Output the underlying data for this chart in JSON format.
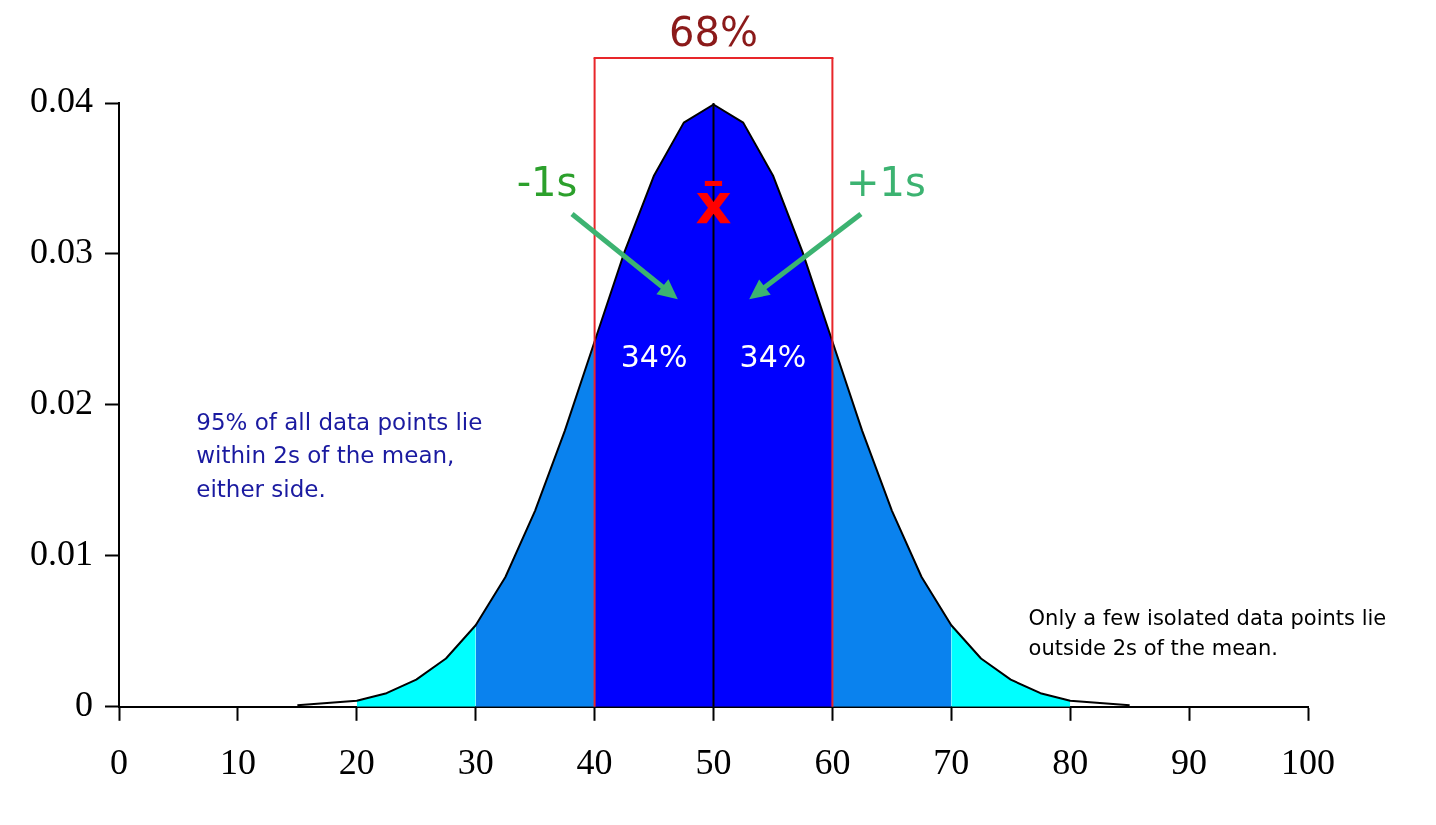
{
  "chart_data": {
    "type": "area",
    "series": [
      {
        "type": "line",
        "color": "#000000",
        "x": [
          15,
          20,
          22.5,
          25,
          27.5,
          30,
          32.5,
          35,
          37.5,
          40,
          42.5,
          45,
          47.5,
          50,
          52.5,
          55,
          57.5,
          60,
          62.5,
          65,
          67.5,
          70,
          72.5,
          75,
          77.5,
          80,
          85
        ],
        "values": [
          0.0001,
          0.0004,
          0.0009,
          0.0018,
          0.0032,
          0.0054,
          0.0086,
          0.013,
          0.0183,
          0.0242,
          0.0301,
          0.0352,
          0.0387,
          0.0399,
          0.0387,
          0.0352,
          0.0301,
          0.0242,
          0.0183,
          0.013,
          0.0086,
          0.0054,
          0.0032,
          0.0018,
          0.0009,
          0.0004,
          0.0001
        ]
      },
      {
        "color": "#00ffff",
        "x": [
          20,
          22.5,
          25,
          27.5,
          30
        ],
        "values": [
          0.0004,
          0.0009,
          0.0018,
          0.0032,
          0.0054
        ]
      },
      {
        "color": "#0a82ee",
        "x": [
          30,
          32.5,
          35,
          37.5,
          40
        ],
        "values": [
          0.0054,
          0.0086,
          0.013,
          0.0183,
          0.0242
        ]
      },
      {
        "color": "#0000ff",
        "x": [
          40,
          42.5,
          45,
          47.5,
          50,
          52.5,
          55,
          57.5,
          60
        ],
        "values": [
          0.0242,
          0.0301,
          0.0352,
          0.0387,
          0.0399,
          0.0387,
          0.0352,
          0.0301,
          0.0242
        ]
      },
      {
        "color": "#0a82ee",
        "x": [
          60,
          62.5,
          65,
          67.5,
          70
        ],
        "values": [
          0.0242,
          0.0183,
          0.013,
          0.0086,
          0.0054
        ]
      },
      {
        "color": "#00ffff",
        "x": [
          70,
          72.5,
          75,
          77.5,
          80
        ],
        "values": [
          0.0054,
          0.0032,
          0.0018,
          0.0009,
          0.0004
        ]
      }
    ],
    "xlim": [
      0,
      100
    ],
    "xticks": [
      0,
      10,
      20,
      30,
      40,
      50,
      60,
      70,
      80,
      90,
      100
    ],
    "ylim": [
      0,
      0.04
    ],
    "yticks": [
      0,
      0.01,
      0.02,
      0.03,
      0.04
    ],
    "legend": false,
    "ref_lines": [
      {
        "axis": "x",
        "value": 40,
        "color": "#e8262a"
      },
      {
        "axis": "x",
        "value": 60,
        "color": "#e8262a"
      },
      {
        "axis": "x",
        "value": 50,
        "color": "#000000"
      }
    ],
    "annotations": [
      "-1s",
      "+1s",
      "34%",
      "34%",
      "x̄",
      "68%",
      "95% of all data points lie within 2s of the mean, either side.",
      "Only a few isolated data points lie outside 2s of the mean."
    ]
  }
}
